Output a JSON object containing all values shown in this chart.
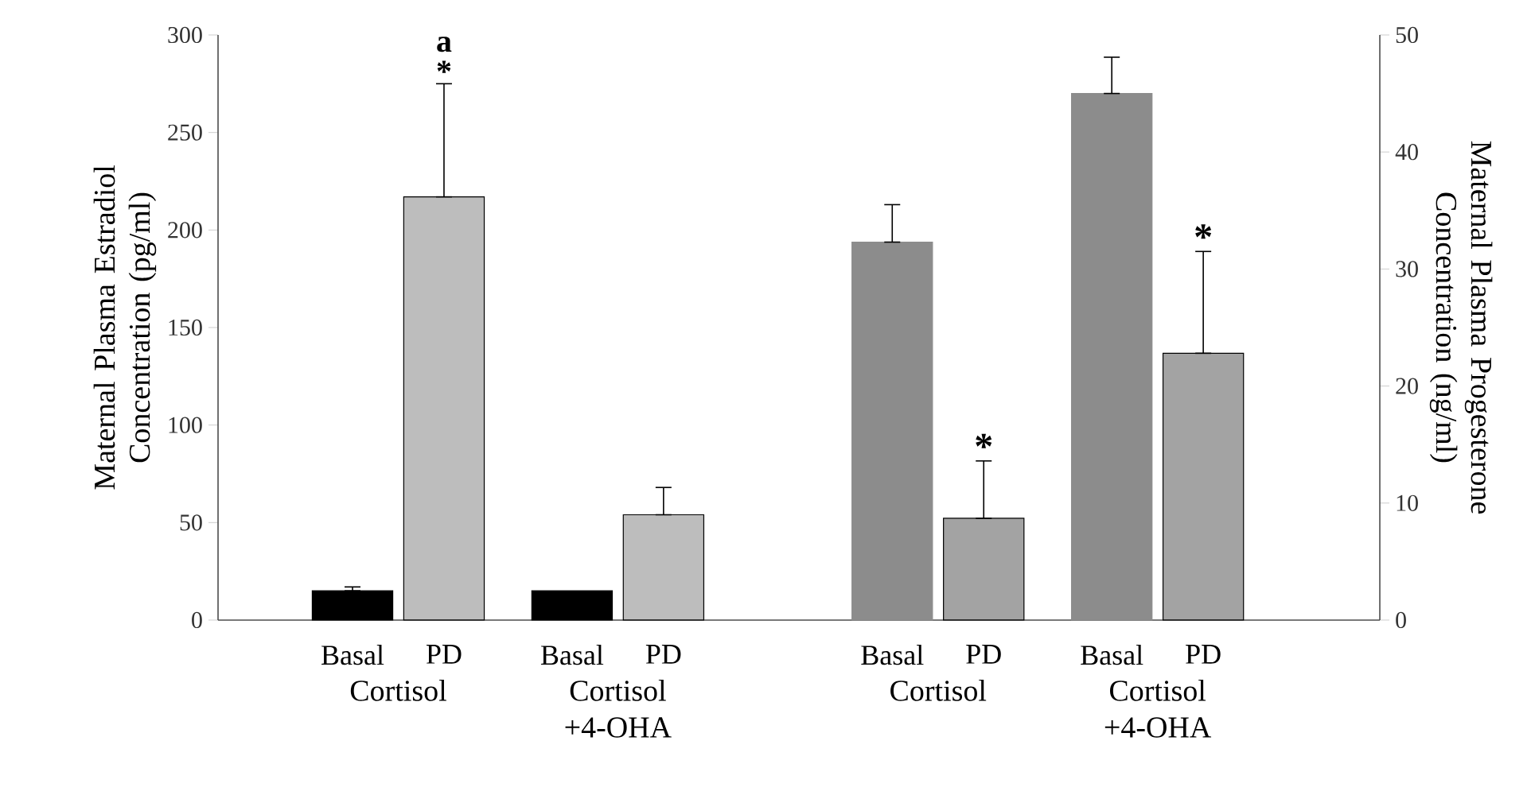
{
  "chart_data": {
    "type": "bar",
    "categories": [
      "Basal",
      "PD",
      "Basal",
      "PD",
      "Basal",
      "PD",
      "Basal",
      "PD"
    ],
    "series": [
      {
        "color": "#000000",
        "values": [
          15,
          null,
          15,
          null,
          null,
          null,
          null,
          null
        ],
        "errors": [
          [
            15,
            17
          ],
          null,
          null,
          null,
          null,
          null,
          null,
          null
        ]
      },
      {
        "color": "#bdbdbd",
        "values": [
          null,
          217,
          null,
          54,
          null,
          null,
          null,
          null
        ],
        "errors": [
          null,
          [
            217,
            275
          ],
          null,
          [
            54,
            68
          ],
          null,
          null,
          null,
          null
        ]
      },
      {
        "color": "#8c8c8c",
        "axis": "y2",
        "values": [
          null,
          null,
          null,
          null,
          32.3,
          null,
          45.0,
          null
        ],
        "errors": [
          null,
          null,
          null,
          null,
          [
            32.3,
            35.5
          ],
          null,
          [
            45.0,
            48.1
          ],
          null
        ]
      },
      {
        "color": "#a3a3a3",
        "axis": "y2",
        "values": [
          null,
          null,
          null,
          null,
          null,
          8.7,
          null,
          22.8
        ],
        "errors": [
          null,
          null,
          null,
          null,
          null,
          [
            8.7,
            13.6
          ],
          null,
          [
            22.8,
            31.5
          ]
        ],
        "value_labels": [
          null,
          null,
          null,
          null,
          null,
          "*",
          null,
          "*"
        ]
      }
    ],
    "ylabel": "Maternal Plasma Estradiol Concentration (pg/ml)",
    "y2label": "Maternal Plasma Progesterone Concentration (ng/ml)",
    "ylim": [
      0,
      300
    ],
    "yticks": [
      0,
      50,
      100,
      150,
      200,
      250,
      300
    ],
    "y2lim": [
      0,
      50
    ],
    "y2ticks": [
      0,
      10,
      20,
      30,
      40,
      50
    ],
    "annotations": [
      "Cortisol",
      "Cortisol +4-OHA",
      "Cortisol",
      "Cortisol +4-OHA",
      "a",
      "*"
    ]
  }
}
